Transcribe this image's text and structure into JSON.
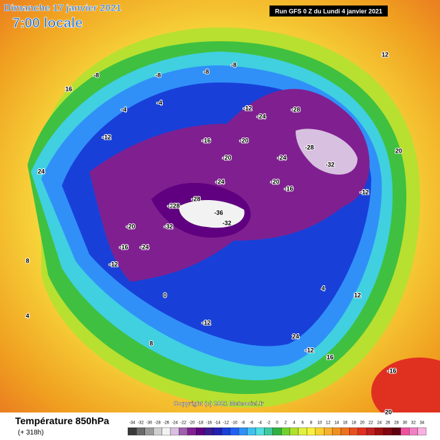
{
  "header": {
    "date": "Dimanche 17 janvier 2021",
    "time": "7:00 locale",
    "run": "Run GFS 0 Z du Lundi 4 janvier 2021"
  },
  "copyright": "Copyright (c) 2021 Meteociel.fr",
  "footer": {
    "title": "Température 850hPa",
    "lead": "(+ 318h)"
  },
  "legend": {
    "values": [
      -34,
      -32,
      -30,
      -28,
      -26,
      -24,
      -22,
      -20,
      -18,
      -16,
      -14,
      -12,
      -10,
      -8,
      -6,
      -4,
      -2,
      0,
      2,
      4,
      6,
      8,
      10,
      12,
      14,
      16,
      18,
      20,
      22,
      24,
      26,
      28,
      30,
      32,
      34
    ],
    "colors": [
      "#3a3a3a",
      "#6a6a6a",
      "#9a9a9a",
      "#cfcfcf",
      "#f2f2f2",
      "#d8c0e0",
      "#a060b0",
      "#802090",
      "#600080",
      "#3a1a90",
      "#2020b0",
      "#1840d8",
      "#2060f0",
      "#3090f8",
      "#40c0f0",
      "#50e0e0",
      "#40c8a0",
      "#30b040",
      "#70d030",
      "#b0e030",
      "#e0f040",
      "#f8f040",
      "#f8d030",
      "#f8b030",
      "#f09020",
      "#f07020",
      "#e85020",
      "#e03020",
      "#c02020",
      "#a01010",
      "#800810",
      "#600010",
      "#f050a0",
      "#f080c0",
      "#f8b0e0"
    ]
  },
  "contours": [
    -8,
    -4,
    -8,
    -8,
    -12,
    -16,
    -20,
    -24,
    -28,
    -24,
    -20,
    -28,
    -32,
    -24,
    -20,
    -16,
    -12,
    -24,
    -28,
    -32,
    -36,
    -32,
    -28,
    -24,
    -20,
    -16,
    -12,
    -12,
    -8,
    -4,
    0,
    4,
    8,
    12,
    16,
    20,
    24,
    -12,
    -12,
    -16,
    20,
    24,
    16,
    12,
    8,
    4
  ]
}
